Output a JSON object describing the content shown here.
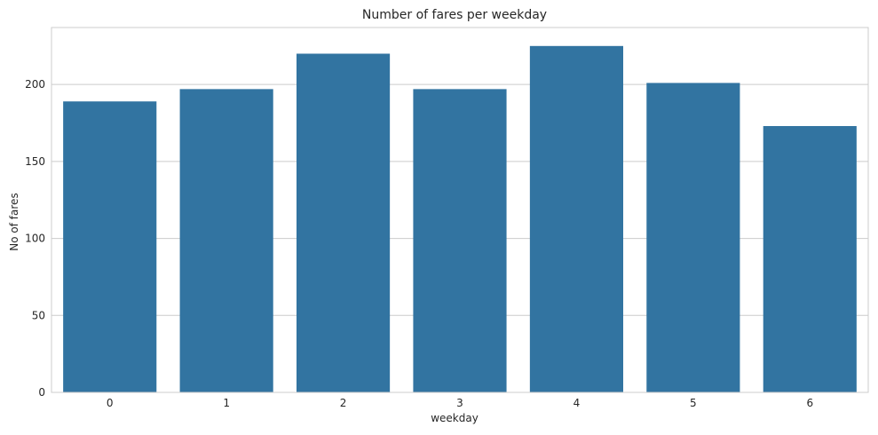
{
  "chart_data": {
    "type": "bar",
    "title": "Number of fares per weekday",
    "xlabel": "weekday",
    "ylabel": "No of fares",
    "categories": [
      "0",
      "1",
      "2",
      "3",
      "4",
      "5",
      "6"
    ],
    "values": [
      189,
      197,
      220,
      197,
      225,
      201,
      173
    ],
    "ylim": [
      0,
      237
    ],
    "yticks": [
      0,
      50,
      100,
      150,
      200
    ],
    "ytick_labels": [
      "0",
      "50",
      "100",
      "150",
      "200"
    ],
    "grid": "horizontal",
    "legend": "none"
  },
  "colors": {
    "bar": "#3274a1",
    "grid": "#cccccc",
    "frame": "#cccccc",
    "text": "#262626",
    "background": "#ffffff"
  }
}
